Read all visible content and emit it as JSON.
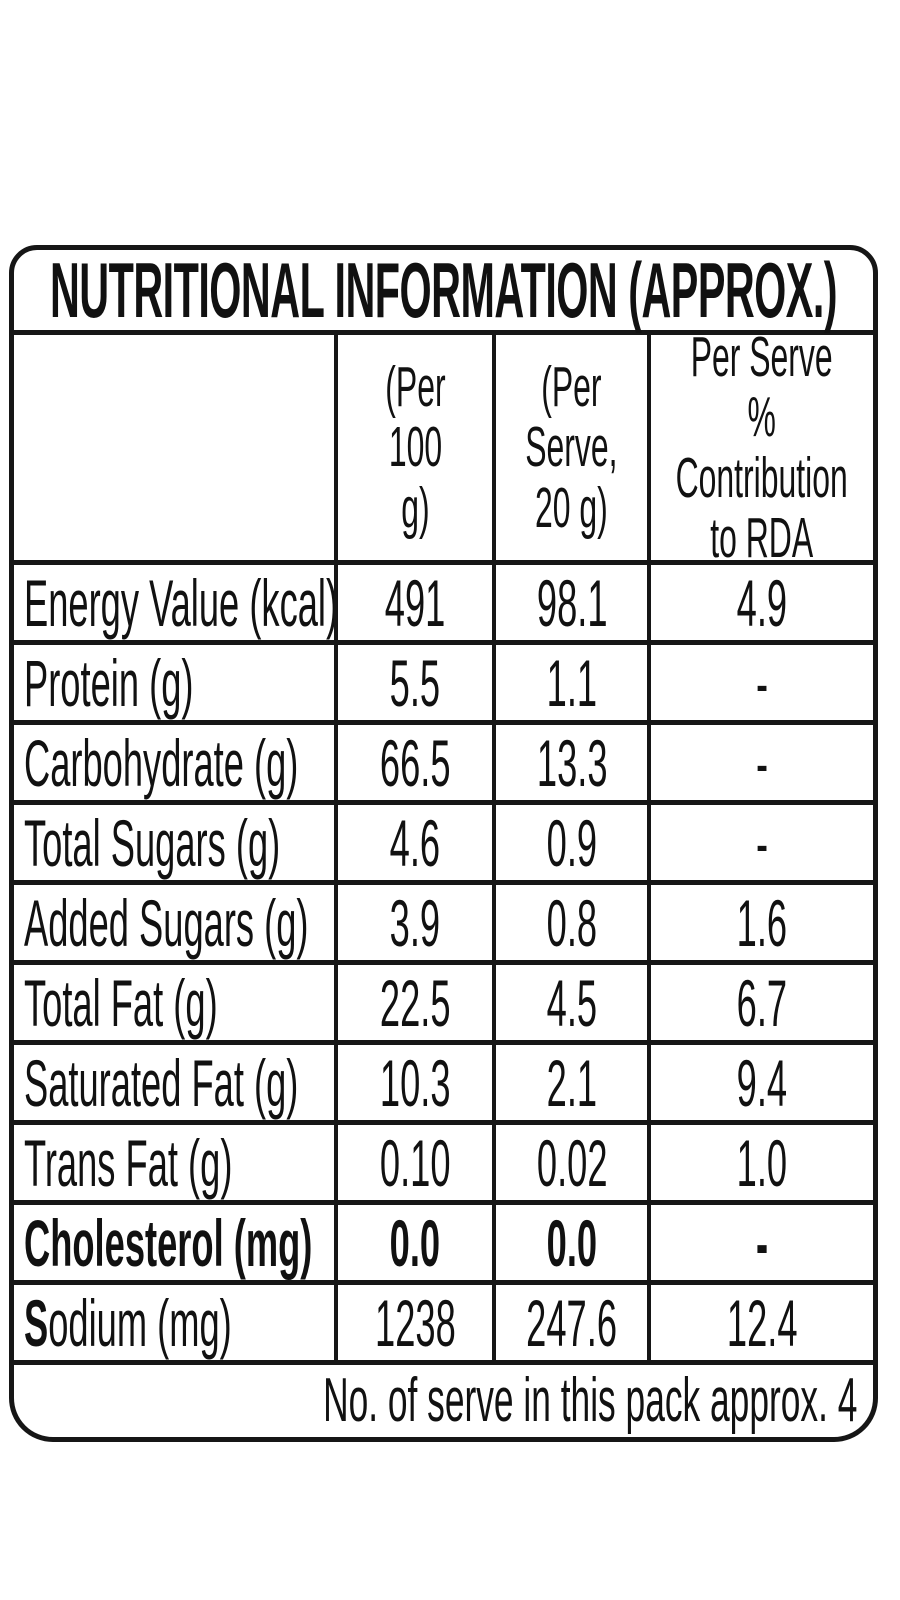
{
  "title": "NUTRITIONAL INFORMATION (APPROX.)",
  "header": {
    "col_item": "",
    "col_per_100g": "(Per\n100 g)",
    "col_per_serve": "(Per\nServe,\n20 g)",
    "col_rda": "Per Serve\n% Contribution\nto RDA"
  },
  "rows": [
    {
      "label": "Energy Value (kcal)",
      "per_100g": "491",
      "per_serve": "98.1",
      "rda_pct": "4.9"
    },
    {
      "label": "Protein (g)",
      "per_100g": "5.5",
      "per_serve": "1.1",
      "rda_pct": "-"
    },
    {
      "label": "Carbohydrate (g)",
      "per_100g": "66.5",
      "per_serve": "13.3",
      "rda_pct": "-"
    },
    {
      "label": "Total Sugars (g)",
      "per_100g": "4.6",
      "per_serve": "0.9",
      "rda_pct": "-"
    },
    {
      "label": "Added Sugars (g)",
      "per_100g": "3.9",
      "per_serve": "0.8",
      "rda_pct": "1.6"
    },
    {
      "label": "Total Fat (g)",
      "per_100g": "22.5",
      "per_serve": "4.5",
      "rda_pct": "6.7"
    },
    {
      "label": "Saturated Fat (g)",
      "per_100g": "10.3",
      "per_serve": "2.1",
      "rda_pct": "9.4"
    },
    {
      "label": "Trans Fat (g)",
      "per_100g": "0.10",
      "per_serve": "0.02",
      "rda_pct": "1.0"
    },
    {
      "label": "Cholesterol (mg)",
      "per_100g": "0.0",
      "per_serve": "0.0",
      "rda_pct": "-",
      "bold": true
    },
    {
      "label": "Sodium (mg)",
      "per_100g": "1238",
      "per_serve": "247.6",
      "rda_pct": "12.4",
      "bold_first_letter": true
    }
  ],
  "footer_note": "No. of serve in this pack approx. 4",
  "colors": {
    "border": "#161616",
    "background": "#ffffff",
    "text": "#111111"
  }
}
